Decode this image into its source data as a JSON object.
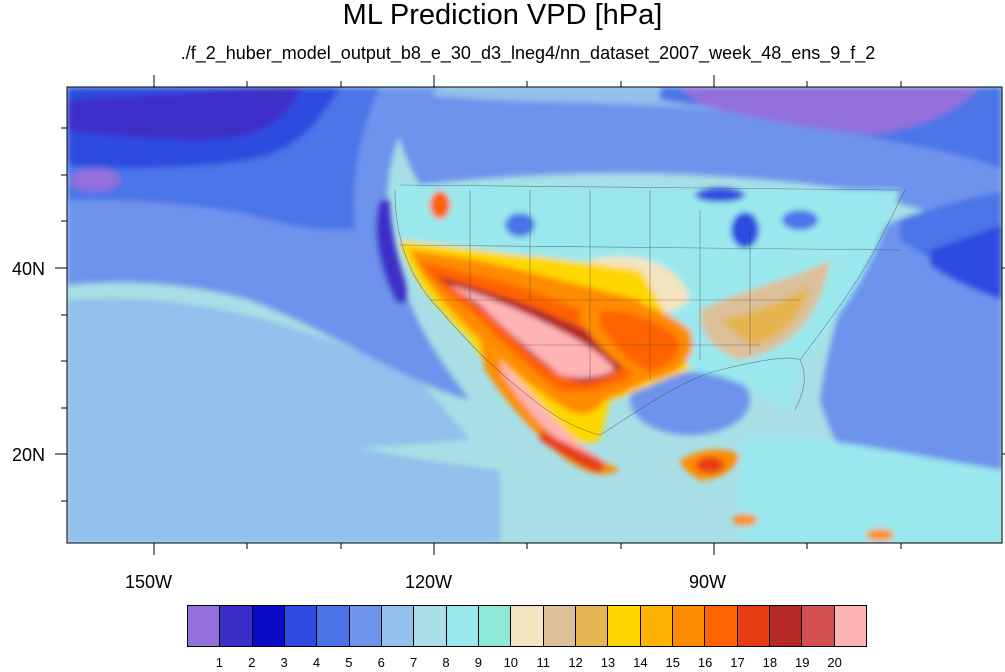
{
  "title": "ML Prediction VPD [hPa]",
  "subtitle": "./f_2_huber_model_output_b8_e_30_d3_lneg4/nn_dataset_2007_week_48_ens_9_f_2",
  "axes": {
    "lat_labels": [
      "40N",
      "20N"
    ],
    "lon_labels": [
      "150W",
      "120W",
      "90W"
    ]
  },
  "colorbar": {
    "colors": [
      "#9370db",
      "#3d2dc8",
      "#0a0ac8",
      "#2e4be0",
      "#4b74e8",
      "#6e93ec",
      "#93c0ec",
      "#a8dfe6",
      "#9ae8ee",
      "#8ee8d8",
      "#f4e4c0",
      "#dcc09a",
      "#e6b450",
      "#ffd700",
      "#ffb300",
      "#ff8c00",
      "#ff6400",
      "#e63c14",
      "#b42828",
      "#d25050",
      "#ffb4b4"
    ],
    "tick_labels": [
      "1",
      "2",
      "3",
      "4",
      "5",
      "6",
      "7",
      "8",
      "9",
      "10",
      "11",
      "12",
      "13",
      "14",
      "15",
      "16",
      "17",
      "18",
      "19",
      "20"
    ]
  }
}
